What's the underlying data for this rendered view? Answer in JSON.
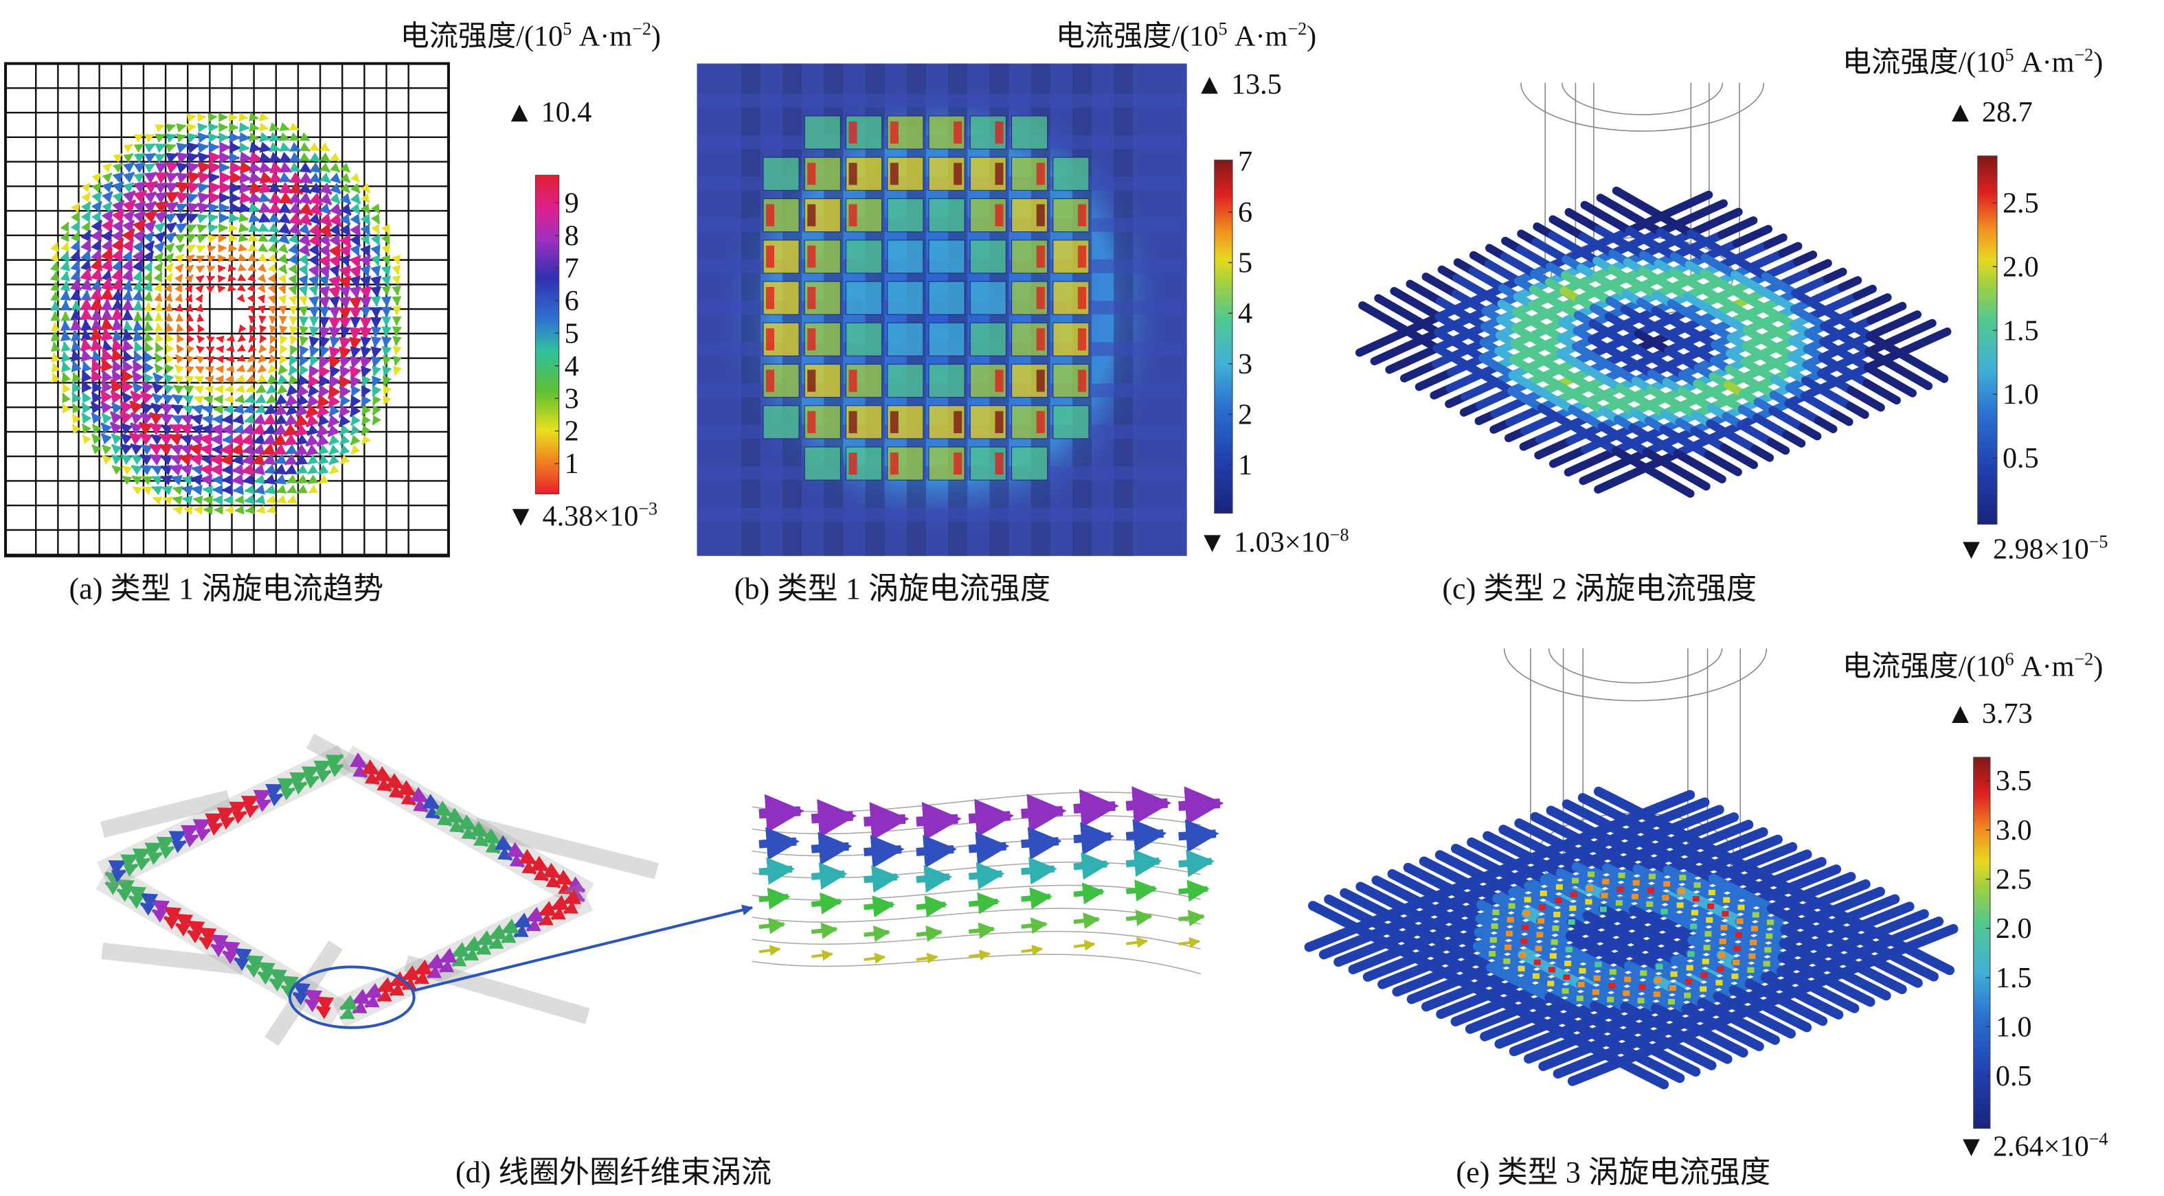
{
  "panels": {
    "a": {
      "caption": "(a) 类型 1 涡旋电流趋势",
      "unit": {
        "label": "电流强度/(10",
        "exp": "5",
        "unit": " A·m",
        "unit_exp": "−2",
        "close": ")"
      },
      "max": "▲ 10.4",
      "min": {
        "base": "▼ 4.38×10",
        "exp": "−3"
      },
      "ticks": [
        "9",
        "8",
        "7",
        "6",
        "5",
        "4",
        "3",
        "2",
        "1"
      ],
      "colormap": [
        "#e8202a",
        "#f08020",
        "#e8e020",
        "#60c030",
        "#30c0a0",
        "#3070d0",
        "#3030b0",
        "#a030c0",
        "#e0208a",
        "#e02030"
      ]
    },
    "b": {
      "caption": "(b) 类型 1 涡旋电流强度",
      "unit": {
        "label": "电流强度/(10",
        "exp": "5",
        "unit": " A·m",
        "unit_exp": "−2",
        "close": ")"
      },
      "max": "▲ 13.5",
      "min": {
        "base": "▼ 1.03×10",
        "exp": "−8"
      },
      "ticks": [
        "7",
        "6",
        "5",
        "4",
        "3",
        "2",
        "1"
      ]
    },
    "c": {
      "caption": "(c) 类型 2 涡旋电流强度",
      "unit": {
        "label": "电流强度/(10",
        "exp": "5",
        "unit": " A·m",
        "unit_exp": "−2",
        "close": ")"
      },
      "max": "▲ 28.7",
      "min": {
        "base": "▼ 2.98×10",
        "exp": "−5"
      },
      "ticks": [
        "2.5",
        "2.0",
        "1.5",
        "1.0",
        "0.5"
      ]
    },
    "d": {
      "caption": "(d) 线圈外圈纤维束涡流"
    },
    "e": {
      "caption": "(e) 类型 3 涡旋电流强度",
      "unit": {
        "label": "电流强度/(10",
        "exp": "6",
        "unit": " A·m",
        "unit_exp": "−2",
        "close": ")"
      },
      "max": "▲ 3.73",
      "min": {
        "base": "▼ 2.64×10",
        "exp": "−4"
      },
      "ticks": [
        "3.5",
        "3.0",
        "2.5",
        "2.0",
        "1.5",
        "1.0",
        "0.5"
      ]
    }
  },
  "colors": {
    "jet": [
      "#1a237a",
      "#2040b0",
      "#2a70d0",
      "#40b0d8",
      "#50c890",
      "#a0d040",
      "#e8d820",
      "#f09020",
      "#e02020",
      "#801818"
    ],
    "rod": "#1c2a6a",
    "blue_bg": "#3848a8",
    "callout": "#2a56b8"
  }
}
